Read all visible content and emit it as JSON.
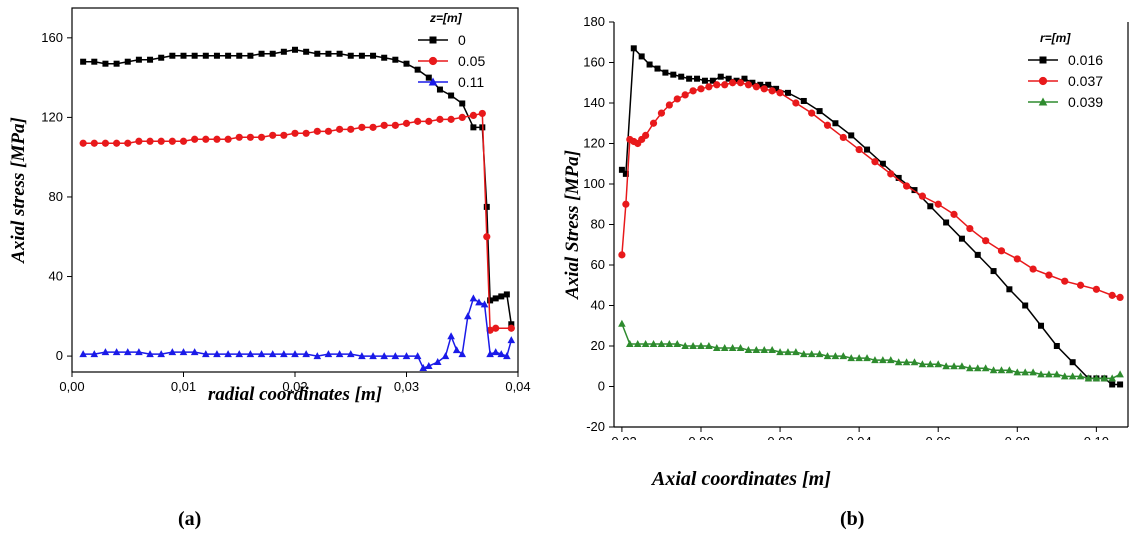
{
  "panels": {
    "a_label": "(a)",
    "b_label": "(b)"
  },
  "chart_data": [
    {
      "type": "line",
      "panel": "(a)",
      "xlabel": "radial coordinates [m]",
      "ylabel": "Axial stress [MPa]",
      "xlim": [
        0.0,
        0.04
      ],
      "ylim": [
        -8,
        175
      ],
      "xticks": [
        0.0,
        0.01,
        0.02,
        0.03,
        0.04
      ],
      "xtick_labels": [
        "0,00",
        "0,01",
        "0,02",
        "0,03",
        "0,04"
      ],
      "yticks": [
        0,
        40,
        80,
        120,
        160
      ],
      "ytick_labels": [
        "0",
        "40",
        "80",
        "120",
        "160"
      ],
      "legend_title": "z=[m]",
      "legend_position": "top-right",
      "grid": false,
      "series": [
        {
          "name": "0",
          "color": "#000000",
          "marker": "square",
          "x": [
            0.001,
            0.002,
            0.003,
            0.004,
            0.005,
            0.006,
            0.007,
            0.008,
            0.009,
            0.01,
            0.011,
            0.012,
            0.013,
            0.014,
            0.015,
            0.016,
            0.017,
            0.018,
            0.019,
            0.02,
            0.021,
            0.022,
            0.023,
            0.024,
            0.025,
            0.026,
            0.027,
            0.028,
            0.029,
            0.03,
            0.031,
            0.032,
            0.033,
            0.034,
            0.035,
            0.036,
            0.0368,
            0.0372,
            0.0375,
            0.038,
            0.0385,
            0.039,
            0.0394
          ],
          "y": [
            148,
            148,
            147,
            147,
            148,
            149,
            149,
            150,
            151,
            151,
            151,
            151,
            151,
            151,
            151,
            151,
            152,
            152,
            153,
            154,
            153,
            152,
            152,
            152,
            151,
            151,
            151,
            150,
            149,
            147,
            144,
            140,
            134,
            131,
            127,
            115,
            115,
            75,
            28,
            29,
            30,
            31,
            16
          ]
        },
        {
          "name": "0.05",
          "color": "#e8191b",
          "marker": "circle",
          "x": [
            0.001,
            0.002,
            0.003,
            0.004,
            0.005,
            0.006,
            0.007,
            0.008,
            0.009,
            0.01,
            0.011,
            0.012,
            0.013,
            0.014,
            0.015,
            0.016,
            0.017,
            0.018,
            0.019,
            0.02,
            0.021,
            0.022,
            0.023,
            0.024,
            0.025,
            0.026,
            0.027,
            0.028,
            0.029,
            0.03,
            0.031,
            0.032,
            0.033,
            0.034,
            0.035,
            0.036,
            0.0368,
            0.0372,
            0.0375,
            0.038,
            0.0394
          ],
          "y": [
            107,
            107,
            107,
            107,
            107,
            108,
            108,
            108,
            108,
            108,
            109,
            109,
            109,
            109,
            110,
            110,
            110,
            111,
            111,
            112,
            112,
            113,
            113,
            114,
            114,
            115,
            115,
            116,
            116,
            117,
            118,
            118,
            119,
            119,
            120,
            121,
            122,
            60,
            13,
            14,
            14
          ]
        },
        {
          "name": "0.11",
          "color": "#1a1ae8",
          "marker": "triangle",
          "x": [
            0.001,
            0.002,
            0.003,
            0.004,
            0.005,
            0.006,
            0.007,
            0.008,
            0.009,
            0.01,
            0.011,
            0.012,
            0.013,
            0.014,
            0.015,
            0.016,
            0.017,
            0.018,
            0.019,
            0.02,
            0.021,
            0.022,
            0.023,
            0.024,
            0.025,
            0.026,
            0.027,
            0.028,
            0.029,
            0.03,
            0.031,
            0.0315,
            0.032,
            0.0328,
            0.0335,
            0.034,
            0.0345,
            0.035,
            0.0355,
            0.036,
            0.0365,
            0.037,
            0.0375,
            0.038,
            0.0385,
            0.039,
            0.0394
          ],
          "y": [
            1,
            1,
            2,
            2,
            2,
            2,
            1,
            1,
            2,
            2,
            2,
            1,
            1,
            1,
            1,
            1,
            1,
            1,
            1,
            1,
            1,
            0,
            1,
            1,
            1,
            0,
            0,
            0,
            0,
            0,
            0,
            -6,
            -5,
            -3,
            0,
            10,
            3,
            1,
            20,
            29,
            27,
            26,
            1,
            2,
            1,
            0,
            8
          ]
        }
      ]
    },
    {
      "type": "line",
      "panel": "(b)",
      "xlabel": "Axial coordinates [m]",
      "ylabel": "Axial  Stress [MPa]",
      "xlim": [
        -0.022,
        0.108
      ],
      "ylim": [
        -20,
        180
      ],
      "xticks": [
        -0.02,
        0.0,
        0.02,
        0.04,
        0.06,
        0.08,
        0.1
      ],
      "xtick_labels": [
        "-0,02",
        "0,00",
        "0,02",
        "0,04",
        "0,06",
        "0,08",
        "0,10"
      ],
      "yticks": [
        -20,
        0,
        20,
        40,
        60,
        80,
        100,
        120,
        140,
        160,
        180
      ],
      "ytick_labels": [
        "-20",
        "0",
        "20",
        "40",
        "60",
        "80",
        "100",
        "120",
        "140",
        "160",
        "180"
      ],
      "legend_title": "r=[m]",
      "legend_position": "top-right",
      "grid": false,
      "series": [
        {
          "name": "0.016",
          "color": "#000000",
          "marker": "square",
          "x": [
            -0.02,
            -0.019,
            -0.017,
            -0.015,
            -0.013,
            -0.011,
            -0.009,
            -0.007,
            -0.005,
            -0.003,
            -0.001,
            0.001,
            0.003,
            0.005,
            0.007,
            0.009,
            0.011,
            0.013,
            0.015,
            0.017,
            0.019,
            0.022,
            0.026,
            0.03,
            0.034,
            0.038,
            0.042,
            0.046,
            0.05,
            0.054,
            0.058,
            0.062,
            0.066,
            0.07,
            0.074,
            0.078,
            0.082,
            0.086,
            0.09,
            0.094,
            0.098,
            0.1,
            0.102,
            0.104,
            0.106
          ],
          "y": [
            107,
            105,
            167,
            163,
            159,
            157,
            155,
            154,
            153,
            152,
            152,
            151,
            151,
            153,
            152,
            151,
            152,
            150,
            149,
            149,
            147,
            145,
            141,
            136,
            130,
            124,
            117,
            110,
            103,
            97,
            89,
            81,
            73,
            65,
            57,
            48,
            40,
            30,
            20,
            12,
            4,
            4,
            4,
            1,
            1
          ]
        },
        {
          "name": "0.037",
          "color": "#e8191b",
          "marker": "circle",
          "x": [
            -0.02,
            -0.019,
            -0.018,
            -0.017,
            -0.016,
            -0.015,
            -0.014,
            -0.012,
            -0.01,
            -0.008,
            -0.006,
            -0.004,
            -0.002,
            0.0,
            0.002,
            0.004,
            0.006,
            0.008,
            0.01,
            0.012,
            0.014,
            0.016,
            0.018,
            0.02,
            0.024,
            0.028,
            0.032,
            0.036,
            0.04,
            0.044,
            0.048,
            0.052,
            0.056,
            0.06,
            0.064,
            0.068,
            0.072,
            0.076,
            0.08,
            0.084,
            0.088,
            0.092,
            0.096,
            0.1,
            0.104,
            0.106
          ],
          "y": [
            65,
            90,
            122,
            121,
            120,
            122,
            124,
            130,
            135,
            139,
            142,
            144,
            146,
            147,
            148,
            149,
            149,
            150,
            150,
            149,
            148,
            147,
            146,
            145,
            140,
            135,
            129,
            123,
            117,
            111,
            105,
            99,
            94,
            90,
            85,
            78,
            72,
            67,
            63,
            58,
            55,
            52,
            50,
            48,
            45,
            44
          ]
        },
        {
          "name": "0.039",
          "color": "#2e8b2e",
          "marker": "triangle",
          "x": [
            -0.02,
            -0.018,
            -0.016,
            -0.014,
            -0.012,
            -0.01,
            -0.008,
            -0.006,
            -0.004,
            -0.002,
            0.0,
            0.002,
            0.004,
            0.006,
            0.008,
            0.01,
            0.012,
            0.014,
            0.016,
            0.018,
            0.02,
            0.022,
            0.024,
            0.026,
            0.028,
            0.03,
            0.032,
            0.034,
            0.036,
            0.038,
            0.04,
            0.042,
            0.044,
            0.046,
            0.048,
            0.05,
            0.052,
            0.054,
            0.056,
            0.058,
            0.06,
            0.062,
            0.064,
            0.066,
            0.068,
            0.07,
            0.072,
            0.074,
            0.076,
            0.078,
            0.08,
            0.082,
            0.084,
            0.086,
            0.088,
            0.09,
            0.092,
            0.094,
            0.096,
            0.098,
            0.1,
            0.102,
            0.104,
            0.106
          ],
          "y": [
            31,
            21,
            21,
            21,
            21,
            21,
            21,
            21,
            20,
            20,
            20,
            20,
            19,
            19,
            19,
            19,
            18,
            18,
            18,
            18,
            17,
            17,
            17,
            16,
            16,
            16,
            15,
            15,
            15,
            14,
            14,
            14,
            13,
            13,
            13,
            12,
            12,
            12,
            11,
            11,
            11,
            10,
            10,
            10,
            9,
            9,
            9,
            8,
            8,
            8,
            7,
            7,
            7,
            6,
            6,
            6,
            5,
            5,
            5,
            4,
            4,
            4,
            4,
            6
          ]
        }
      ]
    }
  ]
}
